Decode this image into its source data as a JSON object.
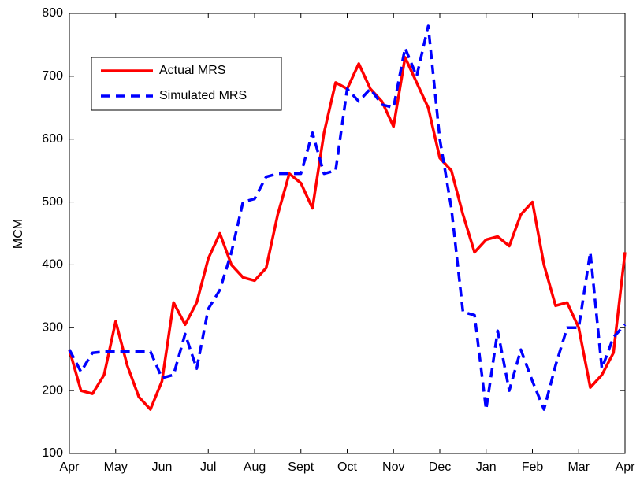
{
  "chart_data": {
    "type": "line",
    "y_label": "MCM",
    "x": [
      0,
      0.25,
      0.5,
      0.75,
      1,
      1.25,
      1.5,
      1.75,
      2,
      2.25,
      2.5,
      2.75,
      3,
      3.25,
      3.5,
      3.75,
      4,
      4.25,
      4.5,
      4.75,
      5,
      5.25,
      5.5,
      5.75,
      6,
      6.25,
      6.5,
      6.75,
      7,
      7.25,
      7.5,
      7.75,
      8,
      8.25,
      8.5,
      8.75,
      9,
      9.25,
      9.5,
      9.75,
      10,
      10.25,
      10.5,
      10.75,
      11,
      11.25,
      11.5,
      11.75,
      12
    ],
    "series": [
      {
        "name": "Actual MRS",
        "color": "#ff0000",
        "dash": false,
        "values": [
          265,
          200,
          195,
          225,
          310,
          240,
          190,
          170,
          215,
          340,
          305,
          340,
          410,
          450,
          400,
          380,
          375,
          395,
          480,
          545,
          530,
          490,
          610,
          690,
          680,
          720,
          680,
          660,
          620,
          730,
          690,
          650,
          570,
          550,
          480,
          420,
          440,
          445,
          430,
          480,
          500,
          400,
          335,
          340,
          300,
          205,
          225,
          260,
          420
        ]
      },
      {
        "name": "Simulated MRS",
        "color": "#0000ff",
        "dash": true,
        "values": [
          265,
          230,
          260,
          262,
          262,
          262,
          262,
          262,
          220,
          225,
          290,
          235,
          330,
          360,
          420,
          500,
          505,
          540,
          545,
          545,
          545,
          610,
          545,
          550,
          680,
          660,
          680,
          655,
          650,
          745,
          700,
          780,
          600,
          490,
          325,
          320,
          170,
          295,
          200,
          265,
          215,
          170,
          240,
          300,
          300,
          420,
          235,
          285,
          305
        ]
      }
    ],
    "xlim": [
      0,
      12
    ],
    "xticks": [
      {
        "value": 0,
        "label": "Apr"
      },
      {
        "value": 1,
        "label": "May"
      },
      {
        "value": 2,
        "label": "Jun"
      },
      {
        "value": 3,
        "label": "Jul"
      },
      {
        "value": 4,
        "label": "Aug"
      },
      {
        "value": 5,
        "label": "Sept"
      },
      {
        "value": 6,
        "label": "Oct"
      },
      {
        "value": 7,
        "label": "Nov"
      },
      {
        "value": 8,
        "label": "Dec"
      },
      {
        "value": 9,
        "label": "Jan"
      },
      {
        "value": 10,
        "label": "Feb"
      },
      {
        "value": 11,
        "label": "Mar"
      },
      {
        "value": 12,
        "label": "Apr"
      }
    ],
    "ylim": [
      100,
      800
    ],
    "yticks": [
      100,
      200,
      300,
      400,
      500,
      600,
      700,
      800
    ],
    "legend": "upper-left"
  }
}
